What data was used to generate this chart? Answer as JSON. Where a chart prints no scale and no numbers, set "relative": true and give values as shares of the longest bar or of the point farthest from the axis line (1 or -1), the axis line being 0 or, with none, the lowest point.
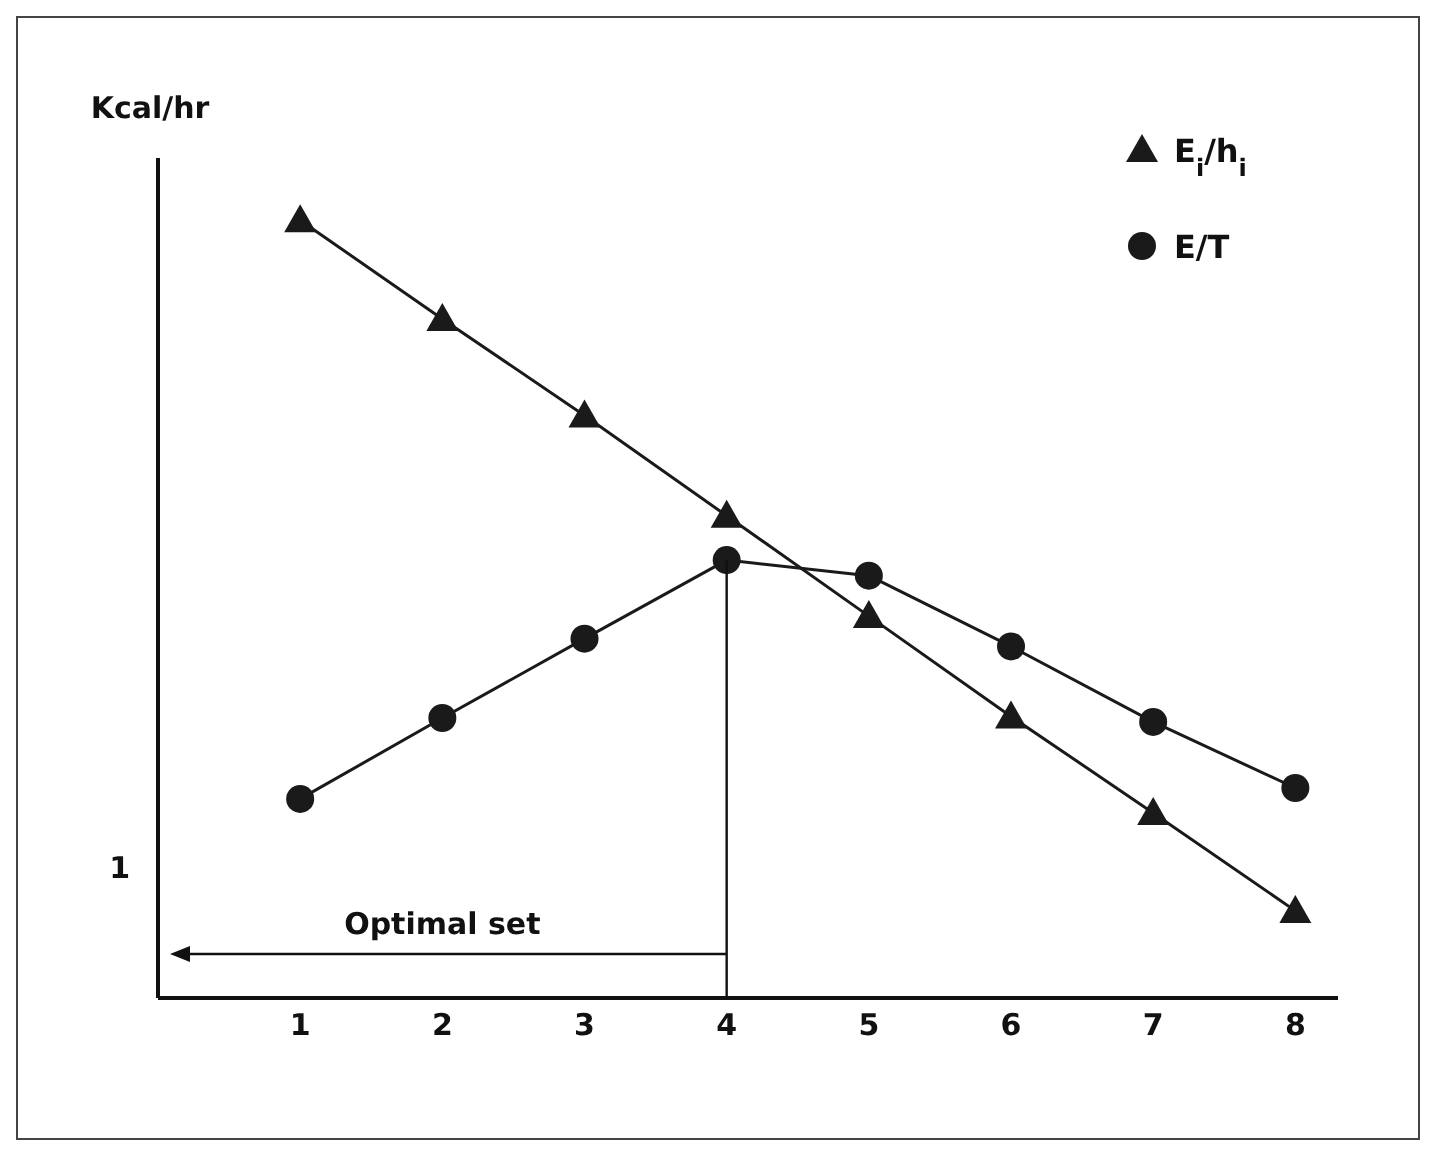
{
  "chart_data": {
    "type": "line",
    "relative": true,
    "ylabel": "Kcal/hr",
    "categories": [
      "1",
      "2",
      "3",
      "4",
      "5",
      "6",
      "7",
      "8"
    ],
    "series": [
      {
        "name": "E$_{i}$/h$_{i}$",
        "color": "#1a1a1a",
        "marker": "triangle",
        "values": [
          1,
          0.873,
          0.749,
          0.62,
          0.491,
          0.362,
          0.238,
          0.112
        ]
      },
      {
        "name": "E/T",
        "color": "#1a1a1a",
        "marker": "circle",
        "values": [
          0.256,
          0.36,
          0.462,
          0.563,
          0.543,
          0.452,
          0.355,
          0.27
        ]
      }
    ],
    "annotations": [
      "1",
      "Optimal set"
    ],
    "ref_lines": [
      {
        "axis": "x",
        "value": "4"
      }
    ],
    "legend": "top right",
    "grid": false
  }
}
